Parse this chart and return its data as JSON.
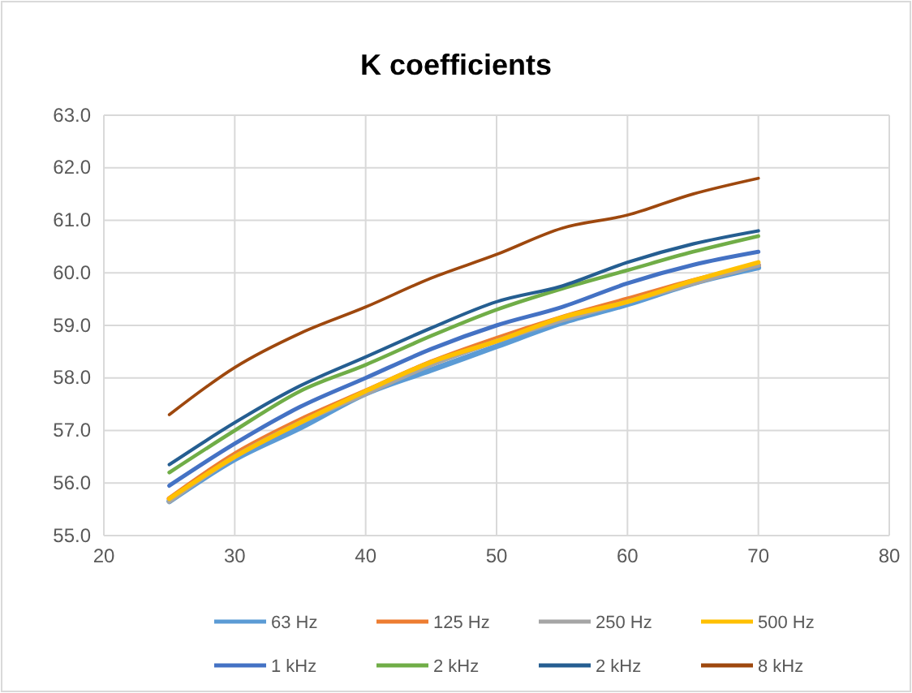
{
  "chart_data": {
    "type": "line",
    "title": "K coefficients",
    "x": [
      25,
      30,
      35,
      40,
      45,
      50,
      55,
      60,
      65,
      70
    ],
    "xlim": [
      20,
      80
    ],
    "xticks": [
      20,
      30,
      40,
      50,
      60,
      70,
      80
    ],
    "ylim": [
      55,
      63
    ],
    "yticks": [
      {
        "value": 55,
        "label": "55.0"
      },
      {
        "value": 56,
        "label": "56.0"
      },
      {
        "value": 57,
        "label": "57.0"
      },
      {
        "value": 58,
        "label": "58.0"
      },
      {
        "value": 59,
        "label": "59.0"
      },
      {
        "value": 60,
        "label": "60.0"
      },
      {
        "value": 61,
        "label": "61.0"
      },
      {
        "value": 62,
        "label": "62.0"
      },
      {
        "value": 63,
        "label": "63.0"
      }
    ],
    "grid": true,
    "legend": "bottom",
    "marker": "none",
    "line_style": "solid",
    "series": [
      {
        "name": "63 Hz",
        "color": "#5b9bd5",
        "values": [
          55.65,
          56.45,
          57.05,
          57.7,
          58.15,
          58.6,
          59.05,
          59.4,
          59.8,
          60.1
        ]
      },
      {
        "name": "125 Hz",
        "color": "#ed7d31",
        "values": [
          55.7,
          56.55,
          57.2,
          57.75,
          58.3,
          58.75,
          59.15,
          59.5,
          59.85,
          60.15
        ]
      },
      {
        "name": "250 Hz",
        "color": "#a5a5a5",
        "values": [
          55.65,
          56.5,
          57.15,
          57.7,
          58.25,
          58.7,
          59.1,
          59.45,
          59.8,
          60.15
        ]
      },
      {
        "name": "500 Hz",
        "color": "#ffc000",
        "values": [
          55.7,
          56.5,
          57.15,
          57.75,
          58.3,
          58.7,
          59.15,
          59.45,
          59.85,
          60.2
        ]
      },
      {
        "name": "1 kHz",
        "color": "#4472c4",
        "values": [
          55.95,
          56.75,
          57.45,
          58.0,
          58.55,
          59.0,
          59.35,
          59.8,
          60.15,
          60.4
        ]
      },
      {
        "name": "2 kHz",
        "color": "#70ad47",
        "values": [
          56.2,
          57.0,
          57.75,
          58.25,
          58.8,
          59.3,
          59.7,
          60.05,
          60.4,
          60.7
        ]
      },
      {
        "name": "2 kHz",
        "color": "#255e91",
        "values": [
          56.35,
          57.15,
          57.85,
          58.4,
          58.95,
          59.45,
          59.75,
          60.2,
          60.55,
          60.8
        ]
      },
      {
        "name": "8 kHz",
        "color": "#9e480e",
        "values": [
          57.3,
          58.2,
          58.85,
          59.35,
          59.9,
          60.35,
          60.85,
          61.1,
          61.5,
          61.8
        ]
      }
    ]
  }
}
